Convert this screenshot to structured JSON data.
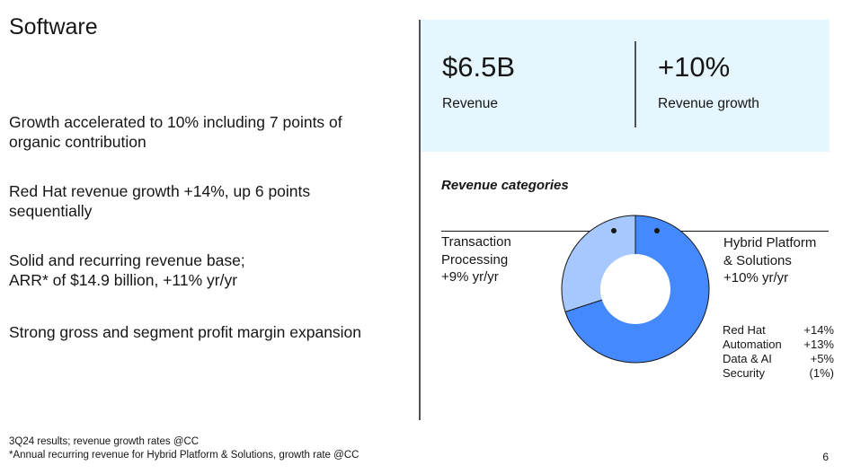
{
  "title": "Software",
  "bullets": [
    "Growth accelerated to 10% including 7 points of organic contribution",
    "Red Hat revenue growth +14%, up 6 points sequentially",
    "Solid and recurring revenue base; ARR* of $14.9 billion, +11% yr/yr",
    "Strong gross and segment profit margin expansion"
  ],
  "kpis": [
    {
      "value": "$6.5B",
      "label": "Revenue"
    },
    {
      "value": "+10%",
      "label": "Revenue growth"
    }
  ],
  "colors": {
    "kpi_background": "#e5f6ff",
    "hybrid": "#4589ff",
    "transaction": "#a6c8ff"
  },
  "chart_data": {
    "type": "pie",
    "title": "Revenue categories",
    "donut": true,
    "series": [
      {
        "name": "Hybrid Platform & Solutions",
        "growth": "+10% yr/yr",
        "share": 0.7
      },
      {
        "name": "Transaction Processing",
        "growth": "+9% yr/yr",
        "share": 0.3
      }
    ],
    "labels": {
      "hybrid_line1": "Hybrid Platform",
      "hybrid_line2": "& Solutions",
      "hybrid_growth": "+10% yr/yr",
      "transaction_line1": "Transaction",
      "transaction_line2": "Processing",
      "transaction_growth": "+9% yr/yr"
    },
    "sub_items": [
      {
        "name": "Red Hat",
        "value": "+14%"
      },
      {
        "name": "Automation",
        "value": "+13%"
      },
      {
        "name": "Data & AI",
        "value": "+5%"
      },
      {
        "name": "Security",
        "value": "(1%)"
      }
    ]
  },
  "footnotes": [
    "3Q24 results; revenue growth rates @CC",
    "*Annual recurring revenue for Hybrid Platform & Solutions, growth rate @CC"
  ],
  "page_number": "6"
}
